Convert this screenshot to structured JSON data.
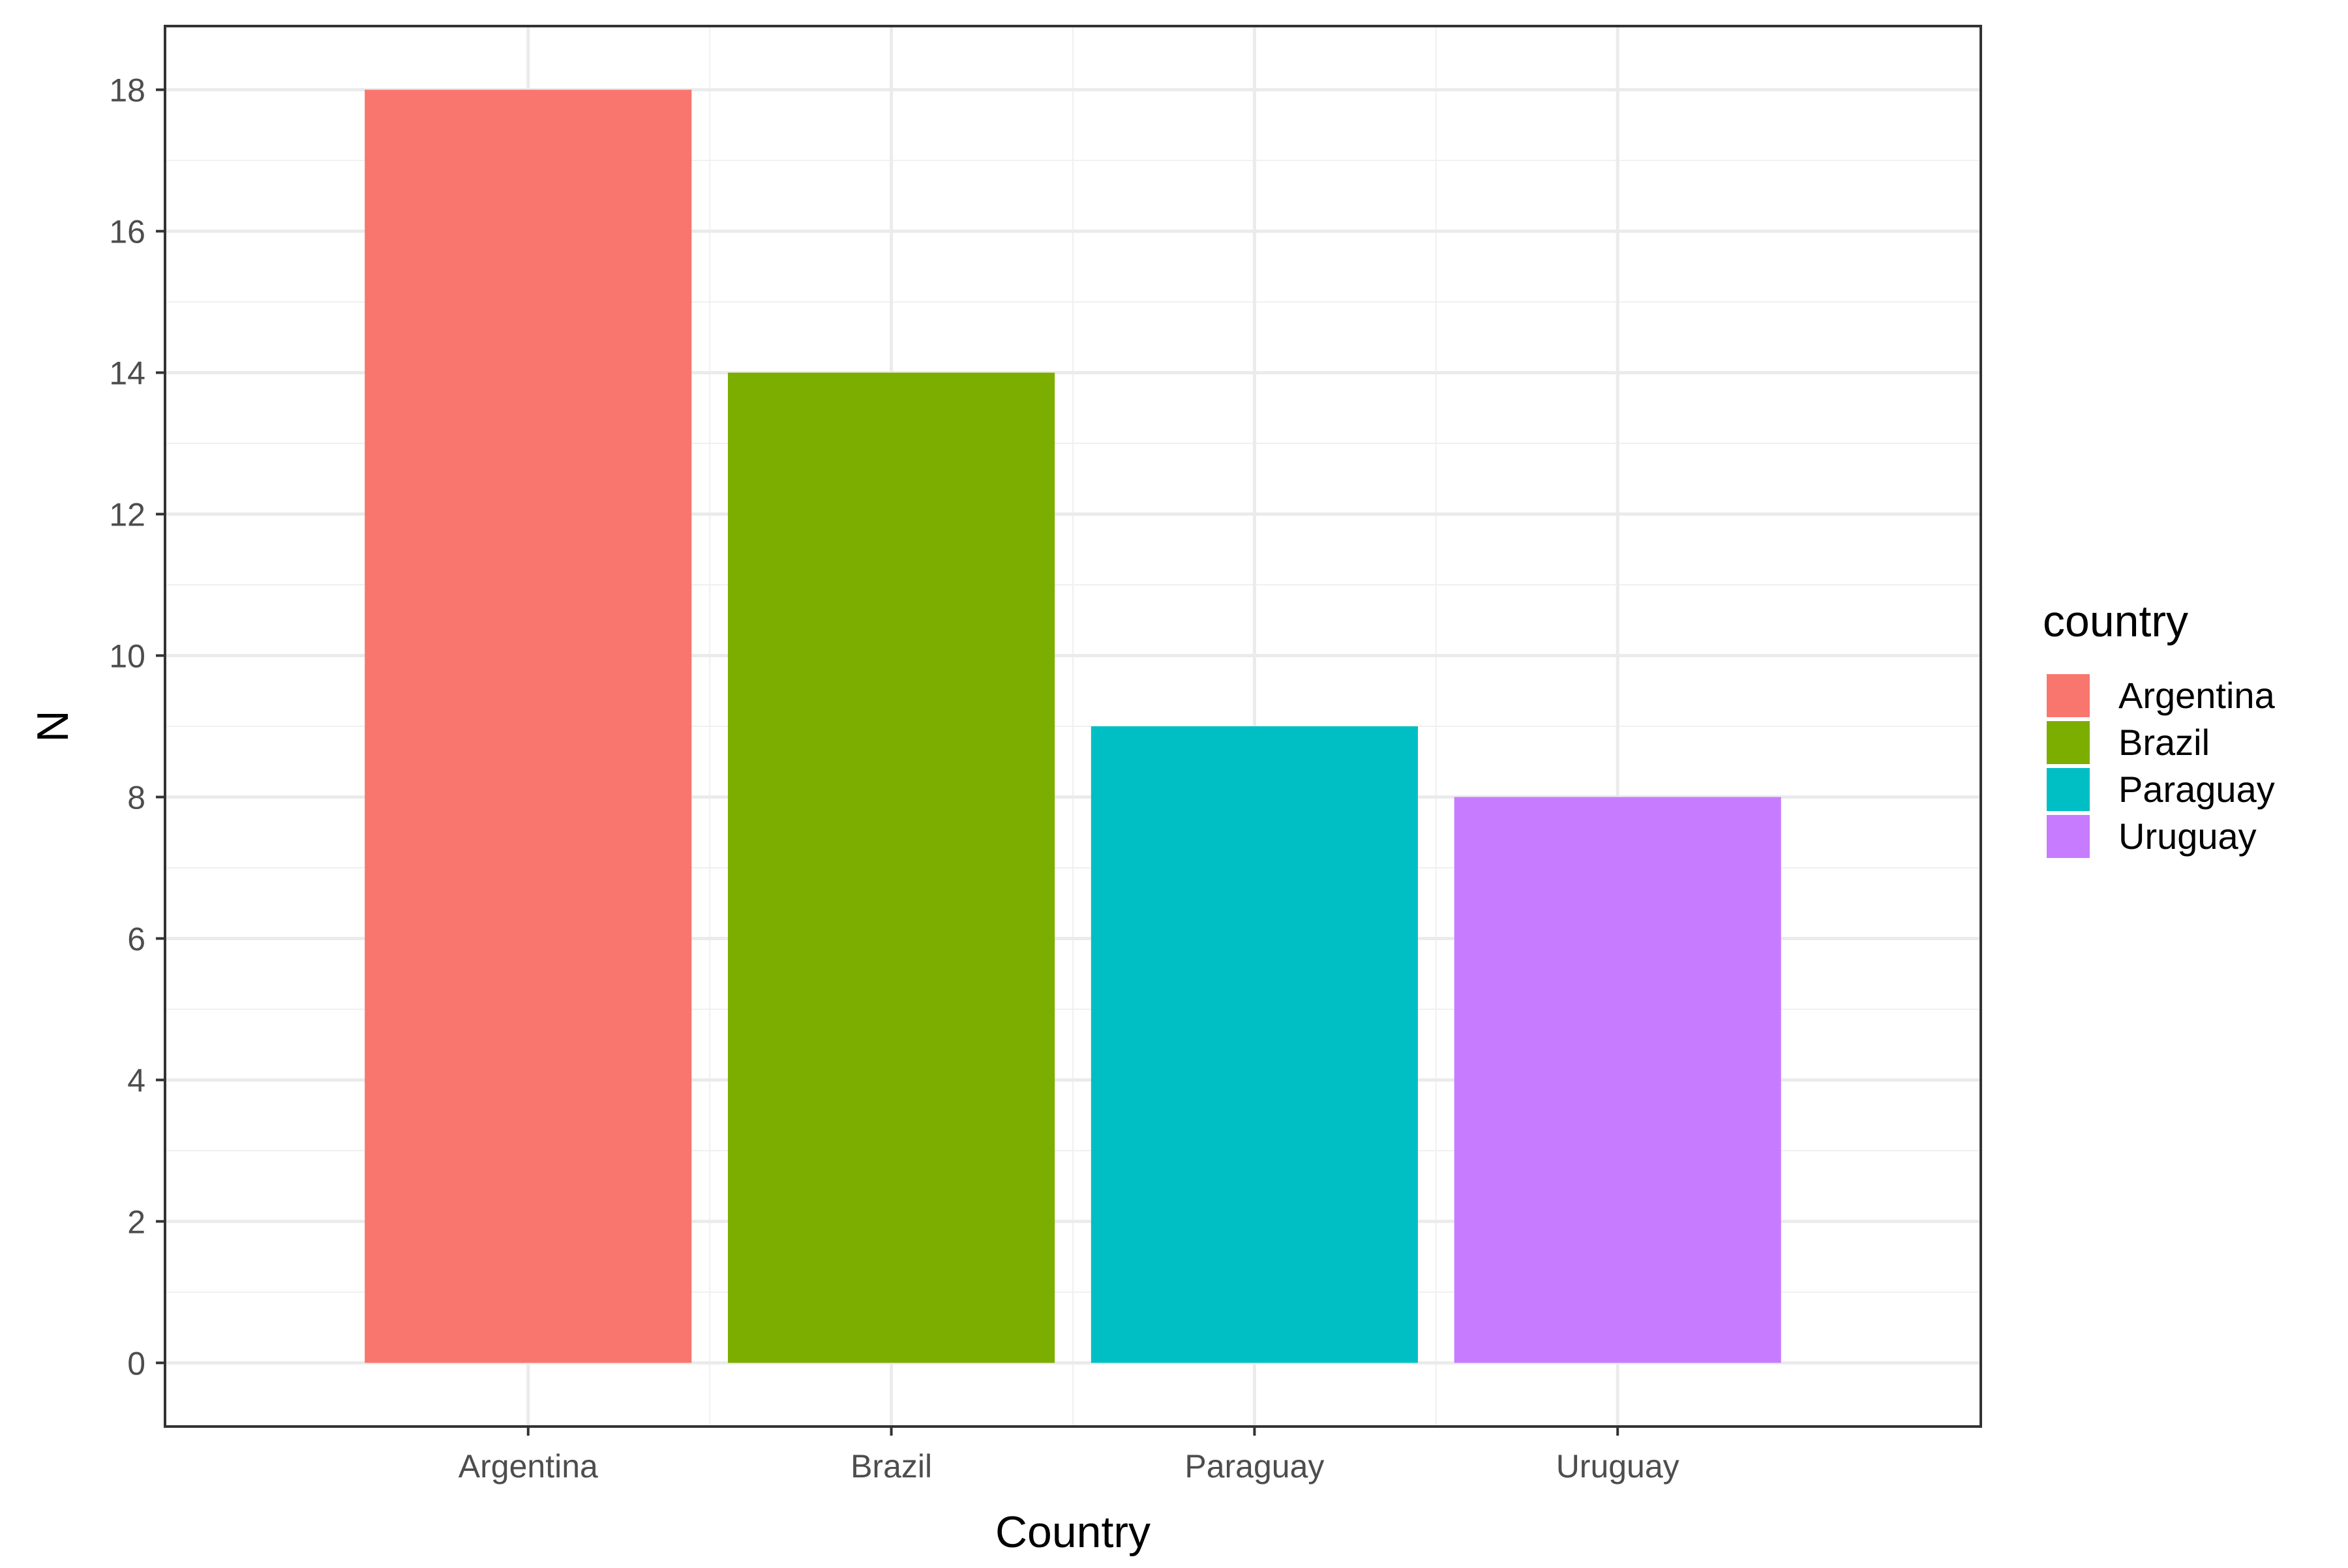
{
  "chart_data": {
    "type": "bar",
    "categories": [
      "Argentina",
      "Brazil",
      "Paraguay",
      "Uruguay"
    ],
    "values": [
      18,
      14,
      9,
      8
    ],
    "colors": [
      "#F8766D",
      "#7CAE00",
      "#00BFC4",
      "#C77CFF"
    ],
    "xlabel": "Country",
    "ylabel": "N",
    "ylim": [
      -0.9,
      18.9
    ],
    "yticks": [
      0,
      2,
      4,
      6,
      8,
      10,
      12,
      14,
      16,
      18
    ],
    "grid": true,
    "legend": {
      "title": "country",
      "placement": "right",
      "entries": [
        "Argentina",
        "Brazil",
        "Paraguay",
        "Uruguay"
      ]
    }
  }
}
